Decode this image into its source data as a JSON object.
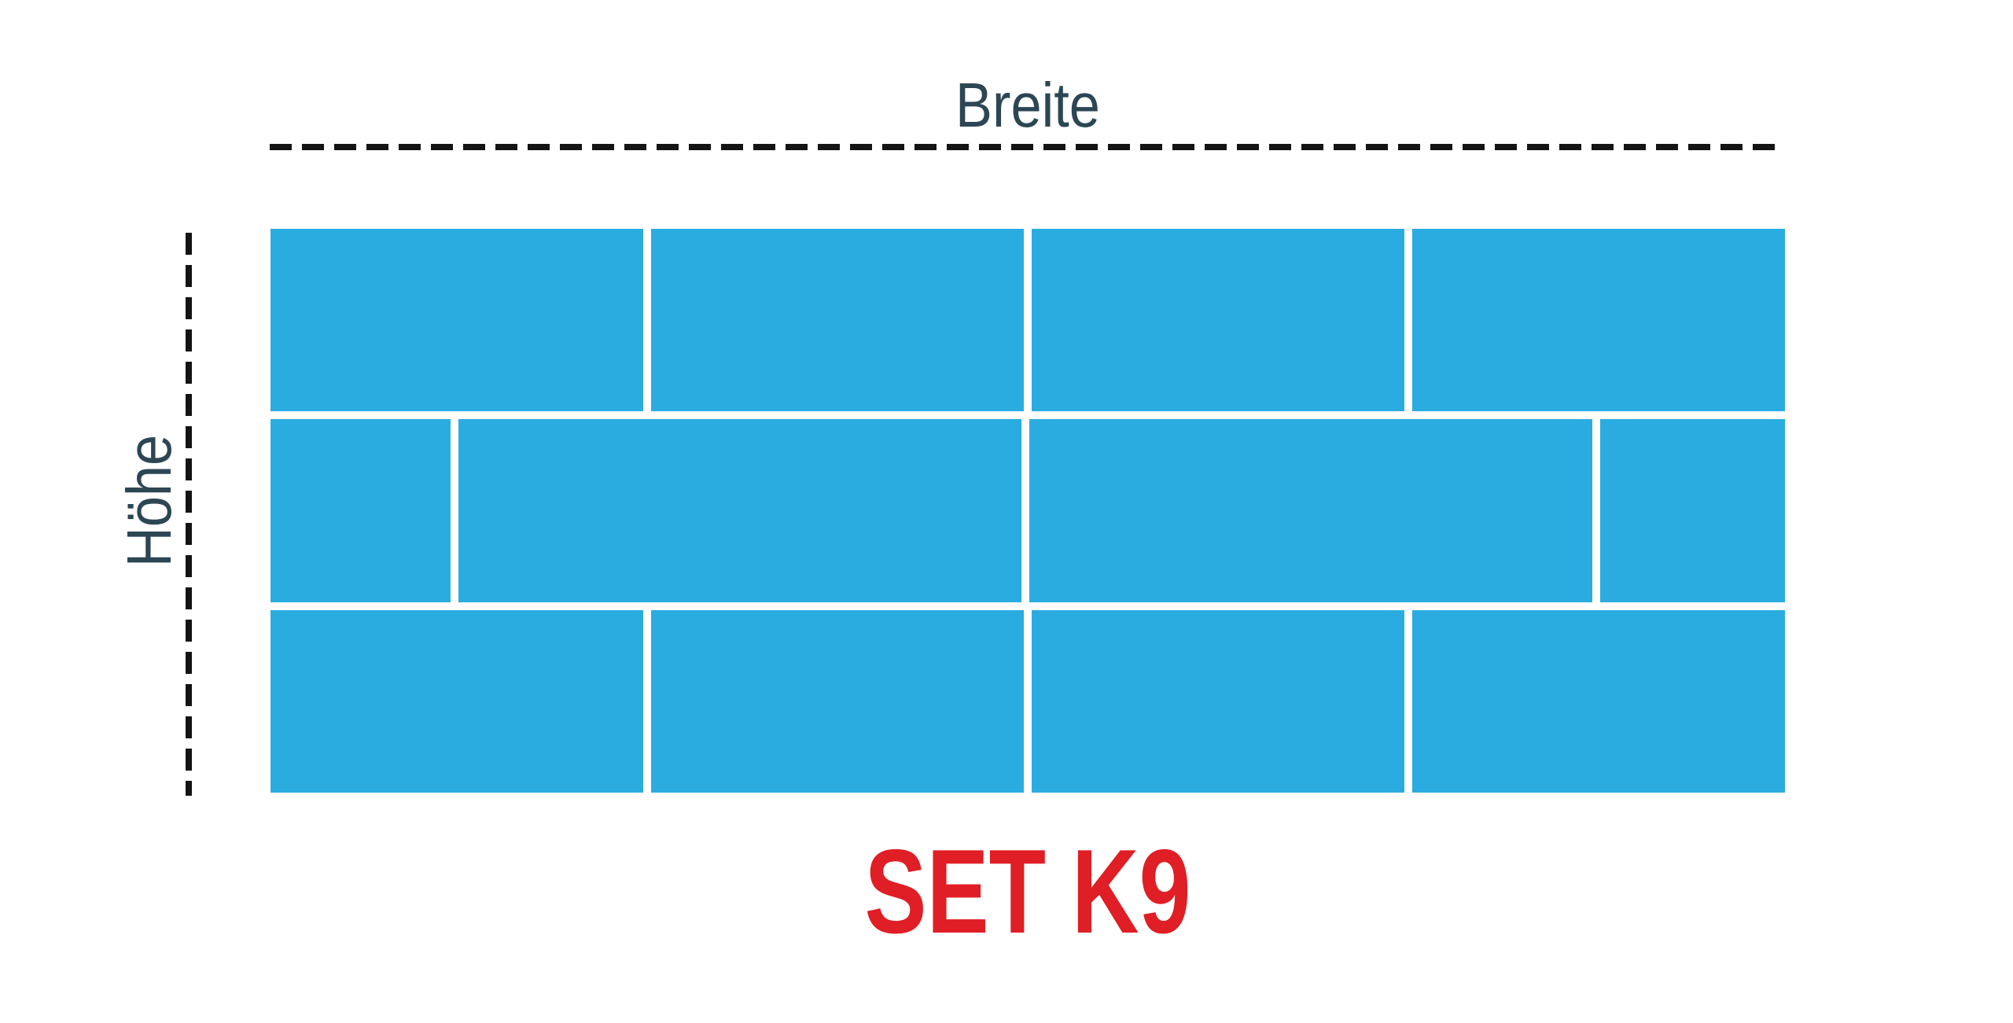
{
  "labels": {
    "width_label": "Breite",
    "height_label": "Höhe",
    "set_label": "SET K9"
  },
  "colors": {
    "brick_blue": "#2BACE1",
    "dimension_text": "#2C4654",
    "set_text": "#E01E25",
    "dash_line": "#141414",
    "background": "#FFFFFF"
  },
  "brick_pattern": {
    "total_bricks": 12,
    "rows": [
      {
        "blocks": [
          474,
          474,
          474,
          474
        ]
      },
      {
        "blocks": [
          229,
          716,
          716,
          235
        ]
      },
      {
        "blocks": [
          474,
          474,
          474,
          474
        ]
      }
    ]
  }
}
